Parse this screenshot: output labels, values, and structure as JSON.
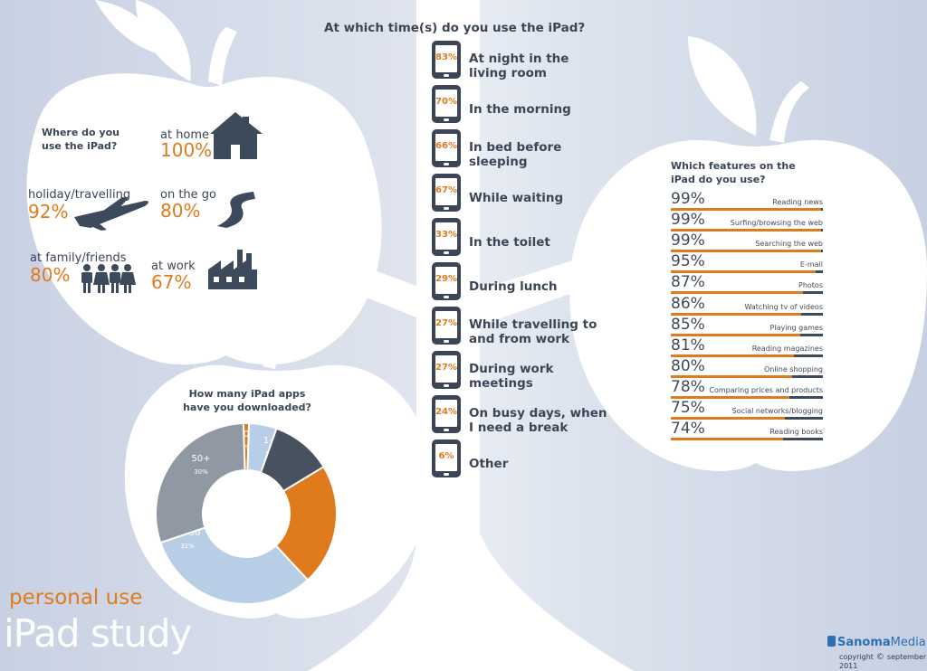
{
  "colors": {
    "orange": "#e07b1d",
    "dark": "#3d4a5c",
    "light_blue": "#b8cde6",
    "grey": "#8f98a3",
    "background": "#d3dae8"
  },
  "title_block": {
    "subtitle": "personal use",
    "title": "iPad study"
  },
  "footer": {
    "brand_a": "Sanoma",
    "brand_b": "Media",
    "copyright_word": "copyright",
    "copyright_symbol": "©",
    "date": "september 2011"
  },
  "location": {
    "question": "Where do you use the iPad?",
    "items": [
      {
        "label": "at home",
        "pct": "100%",
        "icon": "house-icon"
      },
      {
        "label": "holiday/travelling",
        "pct": "92%",
        "icon": "airplane-icon"
      },
      {
        "label": "on the go",
        "pct": "80%",
        "icon": "road-icon"
      },
      {
        "label": "at family/friends",
        "pct": "80%",
        "icon": "family-icon"
      },
      {
        "label": "at work",
        "pct": "67%",
        "icon": "factory-icon"
      }
    ]
  },
  "times": {
    "question": "At which time(s) do you use the iPad?",
    "items": [
      {
        "pct": "83%",
        "label": [
          "At night in the",
          "living room"
        ]
      },
      {
        "pct": "70%",
        "label": [
          "In the morning"
        ]
      },
      {
        "pct": "66%",
        "label": [
          "In bed before",
          "sleeping"
        ]
      },
      {
        "pct": "67%",
        "label": [
          "While waiting"
        ]
      },
      {
        "pct": "33%",
        "label": [
          "In the toilet"
        ]
      },
      {
        "pct": "29%",
        "label": [
          "During lunch"
        ]
      },
      {
        "pct": "27%",
        "label": [
          "While travelling to",
          "and from work"
        ]
      },
      {
        "pct": "27%",
        "label": [
          "During work",
          "meetings"
        ]
      },
      {
        "pct": "24%",
        "label": [
          "On busy days, when",
          "I need a break"
        ]
      },
      {
        "pct": "6%",
        "label": [
          "Other"
        ]
      }
    ]
  },
  "features": {
    "question": "Which features on the iPad do you use?",
    "items": [
      {
        "pct": "99%",
        "label": "Reading news",
        "value": 99
      },
      {
        "pct": "99%",
        "label": "Surfing/browsing the web",
        "value": 99
      },
      {
        "pct": "99%",
        "label": "Searching the web",
        "value": 99
      },
      {
        "pct": "95%",
        "label": "E-mail",
        "value": 95
      },
      {
        "pct": "87%",
        "label": "Photos",
        "value": 87
      },
      {
        "pct": "86%",
        "label": "Watching tv of videos",
        "value": 86
      },
      {
        "pct": "85%",
        "label": "Playing games",
        "value": 85
      },
      {
        "pct": "81%",
        "label": "Reading magazines",
        "value": 81
      },
      {
        "pct": "80%",
        "label": "Online shopping",
        "value": 80
      },
      {
        "pct": "78%",
        "label": "Comparing prices and products",
        "value": 78
      },
      {
        "pct": "75%",
        "label": "Social networks/blogging",
        "value": 75
      },
      {
        "pct": "74%",
        "label": "Reading books",
        "value": 74
      }
    ]
  },
  "chart_data": {
    "type": "pie",
    "title": "How many iPad apps have you downloaded?",
    "slices": [
      {
        "label": "0",
        "pct": "1%",
        "value": 1,
        "color": "#e07b1d"
      },
      {
        "label": "1-5",
        "pct": "5%",
        "value": 5,
        "color": "#b8cde6"
      },
      {
        "label": "6-10",
        "pct": "11%",
        "value": 11,
        "color": "#47515f"
      },
      {
        "label": "11-20",
        "pct": "22%",
        "value": 22,
        "color": "#e07b1d"
      },
      {
        "label": "21-50",
        "pct": "32%",
        "value": 32,
        "color": "#b8cde6"
      },
      {
        "label": "50+",
        "pct": "30%",
        "value": 30,
        "color": "#8f98a3"
      }
    ]
  }
}
